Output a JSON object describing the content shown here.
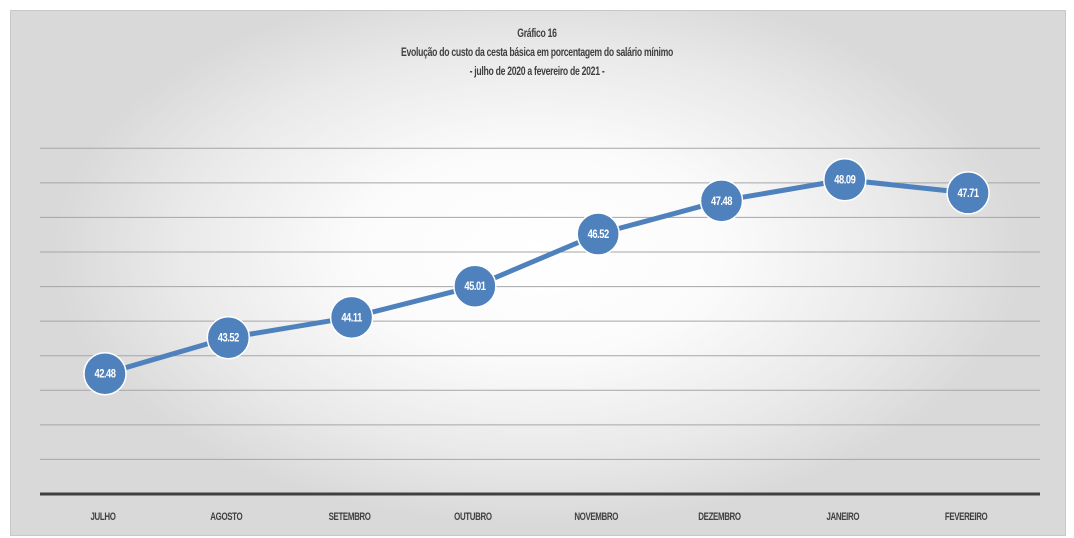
{
  "titles": {
    "line1": "Gráfico 16",
    "line2": "Evolução do custo da cesta básica em porcentagem do salário mínimo",
    "line3": "- julho de 2020 a fevereiro de 2021 -"
  },
  "colors": {
    "line": "#4f81bd",
    "marker": "#4f81bd",
    "marker_text": "#ffffff",
    "grid": "#a6a6a6",
    "axis": "#404040",
    "tick_text": "#404040"
  },
  "chart_data": {
    "type": "line",
    "title": "Gráfico 16 — Evolução do custo da cesta básica em porcentagem do salário mínimo — julho de 2020 a fevereiro de 2021",
    "categories": [
      "JULHO",
      "AGOSTO",
      "SETEMBRO",
      "OUTUBRO",
      "NOVEMBRO",
      "DEZEMBRO",
      "JANEIRO",
      "FEVEREIRO"
    ],
    "series": [
      {
        "values": [
          42.48,
          43.52,
          44.11,
          45.01,
          46.52,
          47.48,
          48.09,
          47.71
        ],
        "labels": [
          "42.48",
          "43.52",
          "44.11",
          "45.01",
          "46.52",
          "47.48",
          "48.09",
          "47.71"
        ]
      }
    ],
    "xlabel": "",
    "ylabel": "",
    "ylim": [
      39,
      49.5
    ],
    "grid": true,
    "legend": "none"
  }
}
